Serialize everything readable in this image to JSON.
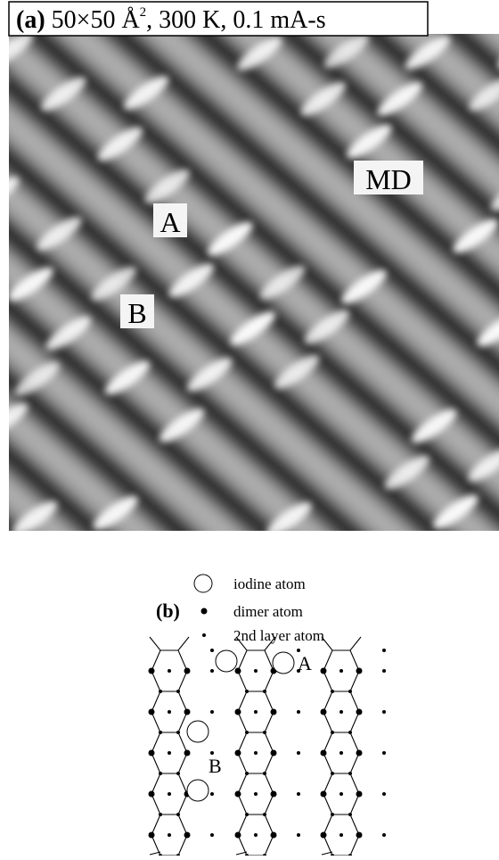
{
  "panel_a": {
    "label": "(a)",
    "caption": "50×50 Å",
    "caption_sup": "2",
    "caption_rest": ", 300 K, 0.1 mA-s",
    "markers": [
      "A",
      "B",
      "MD"
    ]
  },
  "panel_b": {
    "label": "(b)",
    "legend": [
      "iodine atom",
      "dimer atom",
      "2nd layer atom"
    ],
    "markers": [
      "A",
      "B"
    ]
  }
}
